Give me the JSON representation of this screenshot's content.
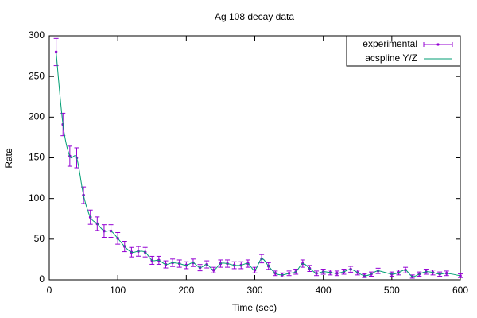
{
  "chart_data": {
    "type": "errorbar",
    "title": "Ag 108 decay data",
    "x_label": "Time (sec)",
    "y_label": "Rate",
    "x": [
      10,
      20,
      30,
      40,
      50,
      60,
      70,
      80,
      90,
      100,
      110,
      120,
      130,
      140,
      150,
      160,
      170,
      180,
      190,
      200,
      210,
      220,
      230,
      240,
      250,
      260,
      270,
      280,
      290,
      300,
      310,
      320,
      330,
      340,
      350,
      360,
      370,
      380,
      390,
      400,
      410,
      420,
      430,
      440,
      450,
      460,
      470,
      480,
      500,
      510,
      520,
      530,
      540,
      550,
      560,
      570,
      580,
      600
    ],
    "series": [
      {
        "name": "experimental",
        "color": "#9400d3",
        "values": [
          280,
          191,
          152,
          150,
          104,
          77,
          69,
          60,
          60,
          51,
          41,
          34,
          35,
          34,
          24,
          24,
          19,
          21,
          20,
          18,
          21,
          15,
          19,
          12,
          20,
          20,
          18,
          18,
          20,
          12,
          26,
          17,
          8,
          6,
          8,
          10,
          20,
          14,
          8,
          10,
          9,
          8,
          10,
          13,
          9,
          5,
          7,
          11,
          7,
          9,
          12,
          4,
          7,
          10,
          9,
          7,
          8,
          5
        ],
        "errors": [
          16.73,
          13.82,
          12.33,
          12.25,
          10.2,
          8.77,
          8.31,
          7.75,
          7.75,
          7.14,
          6.4,
          5.83,
          5.92,
          5.83,
          4.9,
          4.9,
          4.36,
          4.58,
          4.47,
          4.24,
          4.58,
          3.87,
          4.36,
          3.46,
          4.47,
          4.47,
          4.24,
          4.24,
          4.47,
          3.46,
          5.1,
          4.12,
          2.83,
          2.45,
          2.83,
          3.16,
          4.47,
          3.74,
          2.83,
          3.16,
          3,
          2.83,
          3.16,
          3.61,
          3,
          2.24,
          2.65,
          3.32,
          2.65,
          3,
          3.46,
          2,
          2.65,
          3.16,
          3,
          2.65,
          2.83,
          2.24
        ]
      },
      {
        "name": "acspline Y/Z",
        "color": "#009e73"
      }
    ],
    "xlim": [
      0,
      600
    ],
    "xticks": [
      0,
      100,
      200,
      300,
      400,
      500,
      600
    ],
    "ylim": [
      0,
      300
    ],
    "yticks": [
      0,
      50,
      100,
      150,
      200,
      250,
      300
    ],
    "legend": "top-right"
  }
}
